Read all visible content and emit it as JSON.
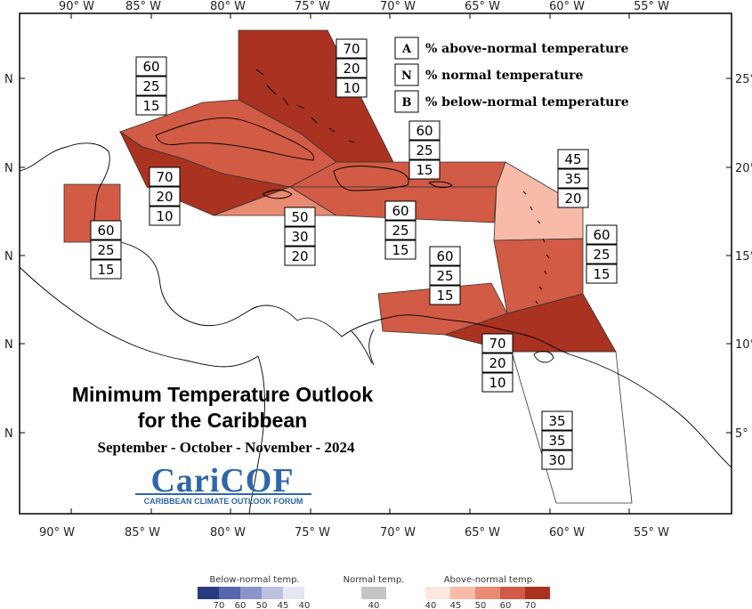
{
  "top_axis": [
    "90° W",
    "85° W",
    "80° W",
    "75° W",
    "70° W",
    "65° W",
    "60° W",
    "55° W"
  ],
  "bottom_axis": [
    "90° W",
    "85° W",
    "80° W",
    "75° W",
    "70° W",
    "65° W",
    "60° W",
    "55° W"
  ],
  "left_axis": [
    "N",
    "N",
    "N",
    "N",
    "N"
  ],
  "right_axis": [
    "25°",
    "20°",
    "15°",
    "10°",
    "5°"
  ],
  "legend": [
    {
      "letter": "A",
      "text": "% above-normal temperature"
    },
    {
      "letter": "N",
      "text": "% normal temperature"
    },
    {
      "letter": "B",
      "text": "% below-normal temperature"
    }
  ],
  "title": {
    "line1": "Minimum Temperature Outlook",
    "line2": "for the Caribbean",
    "season": "September - October - November - 2024"
  },
  "logo": {
    "name": "CariCOF",
    "tagline": "CARIBBEAN CLIMATE OUTLOOK FORUM"
  },
  "regions": [
    {
      "id": "bahamas",
      "above": 70,
      "normal": 20,
      "below": 10,
      "shade": 70
    },
    {
      "id": "cuba",
      "above": 60,
      "normal": 25,
      "below": 15,
      "shade": 60
    },
    {
      "id": "cayman",
      "above": 70,
      "normal": 20,
      "below": 10,
      "shade": 70
    },
    {
      "id": "jamaica",
      "above": 50,
      "normal": 30,
      "below": 20,
      "shade": 50
    },
    {
      "id": "hispaniola-north",
      "above": 60,
      "normal": 25,
      "below": 15,
      "shade": 60
    },
    {
      "id": "hispaniola-south",
      "above": 60,
      "normal": 25,
      "below": 15,
      "shade": 60
    },
    {
      "id": "belize",
      "above": 60,
      "normal": 25,
      "below": 15,
      "shade": 60
    },
    {
      "id": "leeward",
      "above": 45,
      "normal": 35,
      "below": 20,
      "shade": 45
    },
    {
      "id": "windward",
      "above": 60,
      "normal": 25,
      "below": 15,
      "shade": 60
    },
    {
      "id": "abc-islands",
      "above": 60,
      "normal": 25,
      "below": 15,
      "shade": 60
    },
    {
      "id": "trinidad",
      "above": 70,
      "normal": 20,
      "below": 10,
      "shade": 70
    },
    {
      "id": "guianas",
      "above": 35,
      "normal": 35,
      "below": 30,
      "shade": 0
    }
  ],
  "scale": {
    "below": {
      "title": "Below-normal temp.",
      "ticks": [
        "70",
        "60",
        "50",
        "45",
        "40"
      ],
      "colors": [
        "#283a80",
        "#5866ad",
        "#8b93c8",
        "#bcc0e1",
        "#e4e6f3"
      ]
    },
    "normal": {
      "title": "Normal temp.",
      "ticks": [
        "40"
      ],
      "colors": [
        "#c4c4c4"
      ]
    },
    "above": {
      "title": "Above-normal temp.",
      "ticks": [
        "40",
        "45",
        "50",
        "60",
        "70"
      ],
      "colors": [
        "#fde6df",
        "#f7bba8",
        "#e98a73",
        "#d15b45",
        "#a93320"
      ]
    }
  }
}
